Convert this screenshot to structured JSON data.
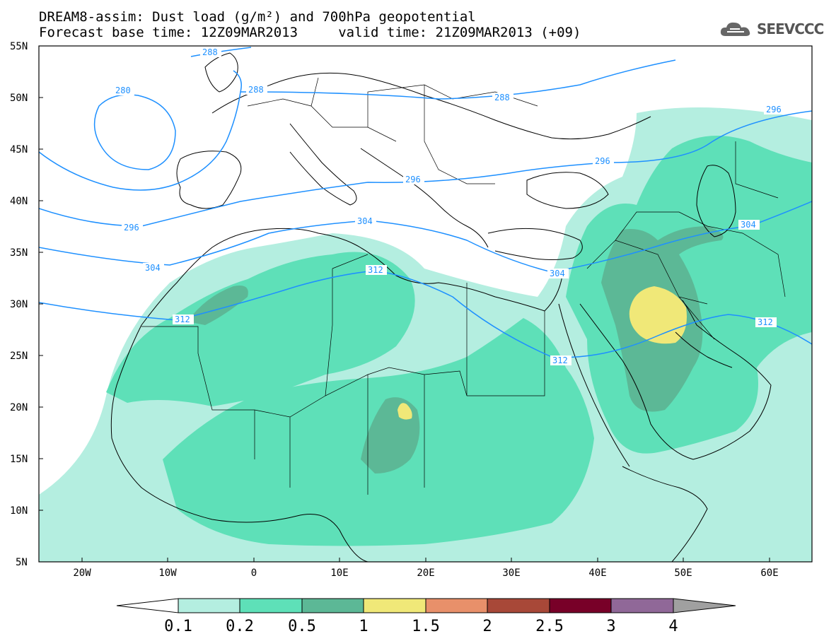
{
  "title": {
    "line1": "DREAM8-assim: Dust load (g/m²) and 700hPa geopotential",
    "line2": "Forecast base time: 12Z09MAR2013     valid time: 21Z09MAR2013 (+09)"
  },
  "logo": {
    "text": "SEEVCCC",
    "icon": "cloud-icon"
  },
  "map": {
    "lon_range": [
      -25,
      65
    ],
    "lat_range": [
      5,
      55
    ],
    "lat_labels": [
      "55N",
      "50N",
      "45N",
      "40N",
      "35N",
      "30N",
      "25N",
      "20N",
      "15N",
      "10N",
      "5N"
    ],
    "lon_labels": [
      "20W",
      "10W",
      "0",
      "10E",
      "20E",
      "30E",
      "40E",
      "50E",
      "60E"
    ],
    "contour_labels": [
      "280",
      "288",
      "288",
      "288",
      "296",
      "296",
      "296",
      "296",
      "304",
      "304",
      "304",
      "304",
      "312",
      "312",
      "312",
      "312"
    ],
    "contour_color": "#1e90ff"
  },
  "colorbar": {
    "labels": [
      "0.1",
      "0.2",
      "0.5",
      "1",
      "1.5",
      "2",
      "2.5",
      "3",
      "4"
    ],
    "colors": [
      "#b4eee0",
      "#5ee0b8",
      "#5cb896",
      "#f0e878",
      "#e8906a",
      "#a84838",
      "#780028",
      "#906898",
      "#a0a0a0"
    ]
  }
}
